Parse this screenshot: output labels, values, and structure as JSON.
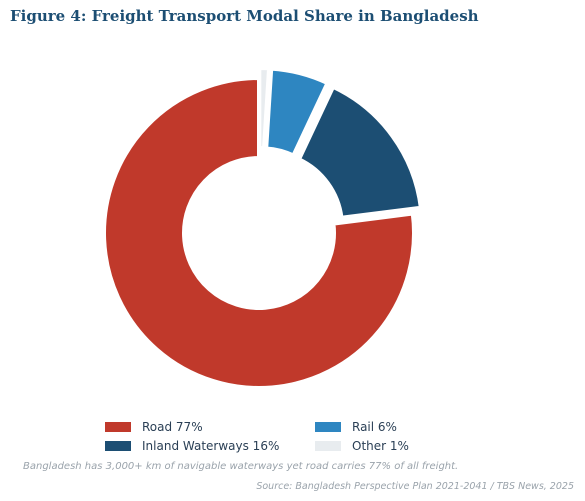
{
  "title": "Figure 4: Freight Transport Modal Share in Bangladesh",
  "chart_data": {
    "type": "pie",
    "variant": "donut",
    "categories": [
      "Road",
      "Inland Waterways",
      "Rail",
      "Other"
    ],
    "values": [
      77,
      16,
      6,
      1
    ],
    "unit": "%",
    "colors": [
      "#c0392b",
      "#1c4e73",
      "#2e86c1",
      "#e8ecef"
    ],
    "legend": [
      "Road 77%",
      "Inland Waterways 16%",
      "Rail 6%",
      "Other 1%"
    ],
    "legend_placement": "bottom"
  },
  "note": "Bangladesh has 3,000+ km of navigable waterways yet road carries 77% of all freight.",
  "source": "Source: Bangladesh Perspective Plan 2021-2041 / TBS News, 2025"
}
